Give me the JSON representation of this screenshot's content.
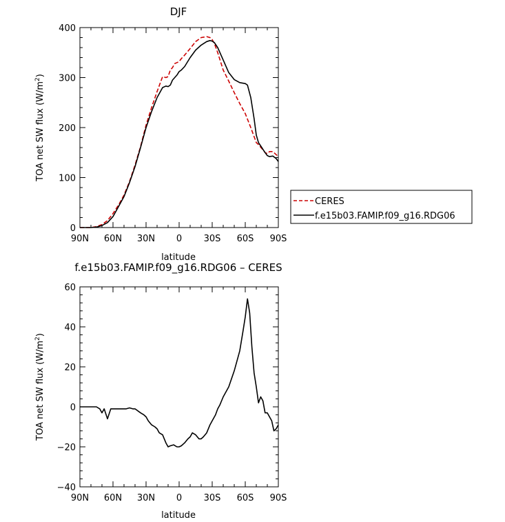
{
  "chart_data": [
    {
      "type": "line",
      "title": "DJF",
      "xlabel": "latitude",
      "ylabel": "TOA net SW flux (W/m²)",
      "ylabel_main": "TOA net SW flux (W/m",
      "ylabel_sup": "2",
      "ylabel_end": ")",
      "xlim": [
        90,
        -90
      ],
      "ylim": [
        0,
        400
      ],
      "x_ticks": [
        90,
        60,
        30,
        0,
        -30,
        -60,
        -90
      ],
      "x_tick_labels": [
        "90N",
        "60N",
        "30N",
        "0",
        "30S",
        "60S",
        "90S"
      ],
      "y_ticks": [
        0,
        100,
        200,
        300,
        400
      ],
      "y_tick_labels": [
        "0",
        "100",
        "200",
        "300",
        "400"
      ],
      "legend": "right",
      "series": [
        {
          "name": "CERES",
          "color": "#cc0000",
          "dash": true,
          "x": [
            90,
            85,
            80,
            75,
            70,
            65,
            60,
            55,
            50,
            45,
            40,
            35,
            30,
            25,
            20,
            15,
            12,
            10,
            8,
            6,
            4,
            2,
            0,
            -2,
            -5,
            -10,
            -15,
            -20,
            -25,
            -28,
            -30,
            -32,
            -35,
            -40,
            -45,
            -50,
            -55,
            -60,
            -65,
            -70,
            -72,
            -75,
            -78,
            -80,
            -82,
            -85,
            -88,
            -90
          ],
          "y": [
            0,
            0,
            0,
            2,
            6,
            14,
            28,
            45,
            65,
            92,
            125,
            162,
            205,
            240,
            272,
            302,
            300,
            302,
            315,
            320,
            328,
            330,
            332,
            338,
            345,
            358,
            372,
            380,
            382,
            380,
            376,
            368,
            350,
            315,
            293,
            270,
            248,
            228,
            200,
            170,
            166,
            158,
            150,
            148,
            152,
            152,
            146,
            142
          ]
        },
        {
          "name": "f.e15b03.FAMIP.f09_g16.RDG06",
          "color": "#000000",
          "dash": false,
          "x": [
            90,
            85,
            80,
            75,
            70,
            65,
            60,
            55,
            50,
            45,
            40,
            35,
            30,
            25,
            20,
            15,
            12,
            10,
            8,
            6,
            4,
            2,
            0,
            -2,
            -5,
            -10,
            -15,
            -20,
            -25,
            -28,
            -30,
            -32,
            -35,
            -40,
            -45,
            -50,
            -55,
            -60,
            -62,
            -65,
            -68,
            -70,
            -72,
            -75,
            -78,
            -80,
            -82,
            -85,
            -88,
            -90
          ],
          "y": [
            0,
            0,
            0,
            1,
            4,
            10,
            22,
            42,
            62,
            90,
            122,
            160,
            200,
            232,
            260,
            280,
            283,
            282,
            285,
            295,
            300,
            305,
            312,
            315,
            322,
            340,
            355,
            365,
            372,
            374,
            373,
            370,
            360,
            335,
            310,
            296,
            290,
            288,
            285,
            260,
            218,
            185,
            170,
            160,
            150,
            144,
            142,
            143,
            138,
            132
          ]
        }
      ]
    },
    {
      "type": "line",
      "title": "f.e15b03.FAMIP.f09_g16.RDG06 – CERES",
      "xlabel": "latitude",
      "ylabel": "TOA net SW flux (W/m²)",
      "ylabel_main": "TOA net SW flux (W/m",
      "ylabel_sup": "2",
      "ylabel_end": ")",
      "xlim": [
        90,
        -90
      ],
      "ylim": [
        -40,
        60
      ],
      "x_ticks": [
        90,
        60,
        30,
        0,
        -30,
        -60,
        -90
      ],
      "x_tick_labels": [
        "90N",
        "60N",
        "30N",
        "0",
        "30S",
        "60S",
        "90S"
      ],
      "y_ticks": [
        -40,
        -20,
        0,
        20,
        40,
        60
      ],
      "y_tick_labels": [
        "−40",
        "−20",
        "0",
        "20",
        "40",
        "60"
      ],
      "series": [
        {
          "color": "#000000",
          "dash": false,
          "x": [
            90,
            85,
            80,
            75,
            72,
            70,
            68,
            65,
            62,
            60,
            55,
            52,
            50,
            48,
            45,
            42,
            40,
            35,
            32,
            30,
            28,
            25,
            22,
            20,
            18,
            15,
            12,
            10,
            8,
            5,
            2,
            0,
            -2,
            -5,
            -8,
            -10,
            -12,
            -15,
            -18,
            -20,
            -22,
            -25,
            -28,
            -30,
            -33,
            -35,
            -37,
            -40,
            -45,
            -50,
            -55,
            -58,
            -60,
            -62,
            -64,
            -66,
            -68,
            -70,
            -72,
            -74,
            -76,
            -78,
            -80,
            -82,
            -84,
            -86,
            -88,
            -90
          ],
          "y": [
            0,
            0,
            0,
            0,
            -1,
            -3,
            -1,
            -6,
            -1,
            -1,
            -1,
            -1,
            -1,
            -1,
            -0.5,
            -1,
            -1,
            -3,
            -4,
            -5,
            -7,
            -9,
            -10,
            -11,
            -13,
            -14,
            -18,
            -20,
            -19.5,
            -19,
            -20,
            -20,
            -19.5,
            -18,
            -16,
            -15,
            -13,
            -14,
            -16,
            -16,
            -15,
            -13,
            -9,
            -7,
            -4,
            -1,
            1,
            5,
            10,
            18,
            28,
            38,
            45,
            54,
            47,
            30,
            17,
            10,
            2,
            5,
            3,
            -3,
            -3,
            -5,
            -7,
            -12,
            -11,
            -9
          ]
        }
      ]
    }
  ]
}
